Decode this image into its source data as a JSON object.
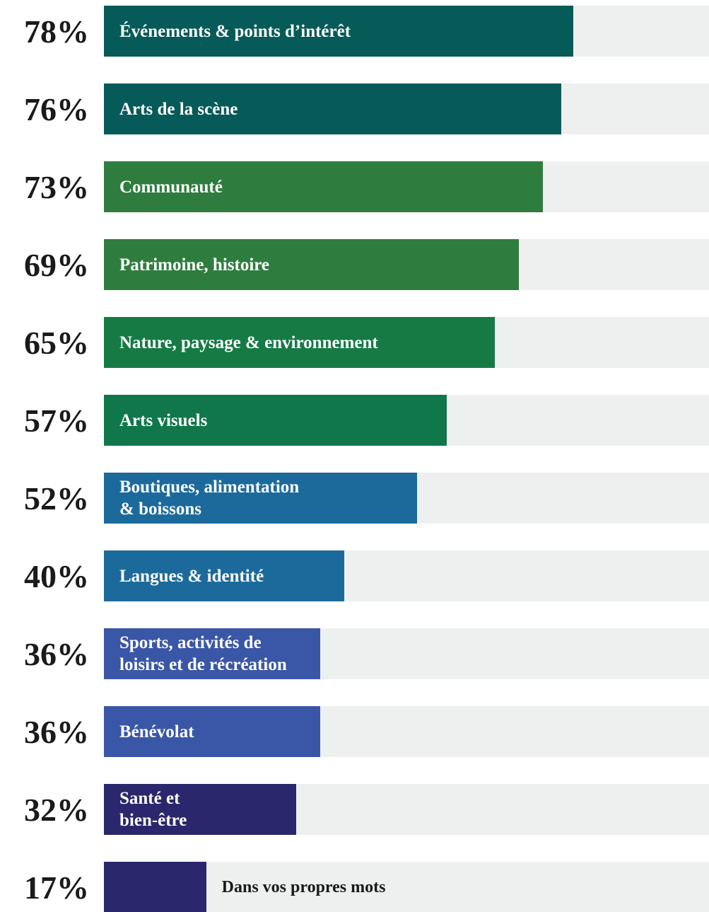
{
  "chart_data": {
    "type": "bar",
    "orientation": "horizontal",
    "categories": [
      "Événements & points d’intérêt",
      "Arts de la scène",
      "Communauté",
      "Patrimoine, histoire",
      "Nature, paysage & environnement",
      "Arts visuels",
      "Boutiques, alimentation\n& boissons",
      "Langues & identité",
      "Sports, activités de\nloisirs et de récréation",
      "Bénévolat",
      "Santé et\nbien-être",
      "Dans vos propres mots"
    ],
    "values": [
      78,
      76,
      73,
      69,
      65,
      57,
      52,
      40,
      36,
      36,
      32,
      17
    ],
    "value_labels": [
      "78%",
      "76%",
      "73%",
      "69%",
      "65%",
      "57%",
      "52%",
      "40%",
      "36%",
      "36%",
      "32%",
      "17%"
    ],
    "colors": [
      "#065a58",
      "#065a58",
      "#2f7d3e",
      "#2f7d3e",
      "#167a45",
      "#0f774a",
      "#1c6a9c",
      "#1c6a9c",
      "#3a56a6",
      "#3a56a6",
      "#2b276c",
      "#2b276c"
    ],
    "track_color": "#eef0ef",
    "xlim": [
      0,
      100
    ]
  }
}
